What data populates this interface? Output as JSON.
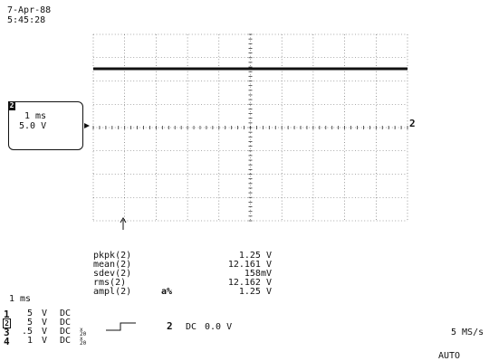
{
  "header": {
    "date": "7-Apr-88",
    "time": "5:45:28"
  },
  "trace_box": {
    "channel": "2",
    "timebase": "1 ms",
    "volts": "5.0 V"
  },
  "grid_marker_right": "2",
  "measurements": [
    {
      "name": "pkpk(2)",
      "value": "1.25 V"
    },
    {
      "name": "mean(2)",
      "value": "12.161 V"
    },
    {
      "name": "sdev(2)",
      "value": "158mV"
    },
    {
      "name": "rms(2)",
      "value": "12.162 V"
    },
    {
      "name": "ampl(2)",
      "flag": "a%",
      "value": "1.25 V"
    }
  ],
  "timebase_label": "1 ms",
  "channels": [
    {
      "num": "1",
      "scale": "5",
      "unit": "V",
      "coupling": "DC",
      "extra": ""
    },
    {
      "num": "2",
      "scale": "5",
      "unit": "V",
      "coupling": "DC",
      "extra": ""
    },
    {
      "num": "3",
      "scale": ".5",
      "unit": "V",
      "coupling": "DC",
      "extra": "x 20"
    },
    {
      "num": "4",
      "scale": "1",
      "unit": "V",
      "coupling": "DC",
      "extra": "x 20"
    }
  ],
  "trigger": {
    "source": "2",
    "coupling": "DC",
    "level": "0.0 V"
  },
  "sample_rate": "5 MS/s",
  "trigger_mode": "AUTO"
}
